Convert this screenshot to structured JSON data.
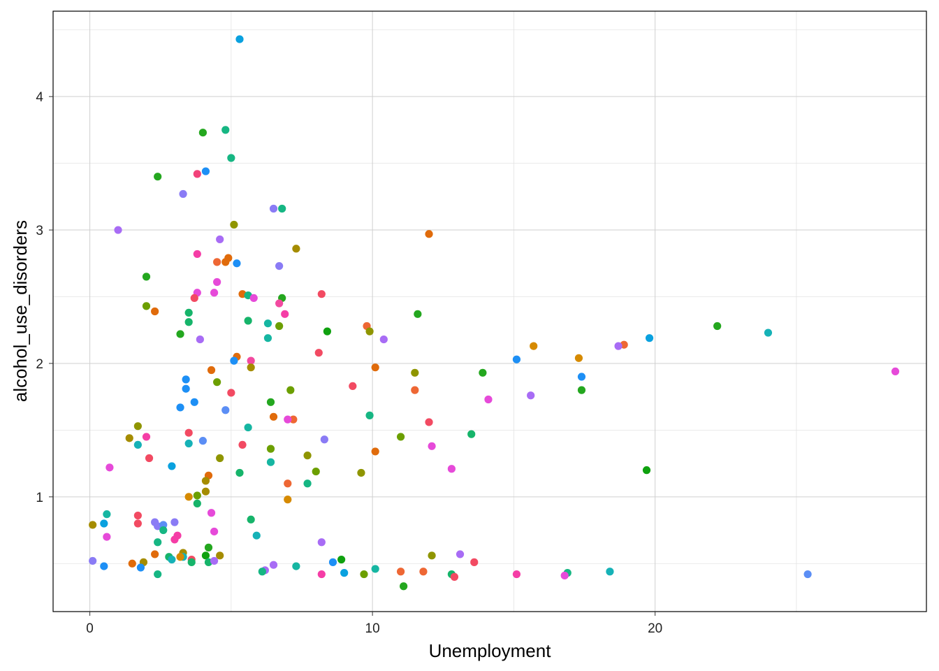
{
  "chart_data": {
    "type": "scatter",
    "title": "",
    "xlabel": "Unemployment",
    "ylabel": "alcohol_use_disorders",
    "xlim": [
      -1.3,
      29.6
    ],
    "ylim": [
      0.14,
      4.64
    ],
    "x_ticks": [
      0,
      10,
      20
    ],
    "x_tick_labels": [
      "0",
      "10",
      "20"
    ],
    "y_ticks": [
      1,
      2,
      3,
      4
    ],
    "y_tick_labels": [
      "1",
      "2",
      "3",
      "4"
    ],
    "grid": true,
    "legend": "none",
    "points": [
      {
        "x": 5.3,
        "y": 4.43,
        "color": "#0aa1df"
      },
      {
        "x": 4.0,
        "y": 3.73,
        "color": "#24a71f"
      },
      {
        "x": 4.8,
        "y": 3.75,
        "color": "#16b683"
      },
      {
        "x": 5.0,
        "y": 3.54,
        "color": "#16b683"
      },
      {
        "x": 4.1,
        "y": 3.44,
        "color": "#1d8ff5"
      },
      {
        "x": 3.8,
        "y": 3.42,
        "color": "#f2427a"
      },
      {
        "x": 2.4,
        "y": 3.4,
        "color": "#24a71f"
      },
      {
        "x": 3.3,
        "y": 3.27,
        "color": "#8a7bf5"
      },
      {
        "x": 6.5,
        "y": 3.16,
        "color": "#8a7bf5"
      },
      {
        "x": 6.8,
        "y": 3.16,
        "color": "#16b683"
      },
      {
        "x": 5.1,
        "y": 3.04,
        "color": "#8f9500"
      },
      {
        "x": 1.0,
        "y": 3.0,
        "color": "#a86cf5"
      },
      {
        "x": 12.0,
        "y": 2.97,
        "color": "#e06b0b"
      },
      {
        "x": 4.6,
        "y": 2.93,
        "color": "#a86cf5"
      },
      {
        "x": 7.3,
        "y": 2.86,
        "color": "#a58c00"
      },
      {
        "x": 3.8,
        "y": 2.82,
        "color": "#f53da6"
      },
      {
        "x": 4.9,
        "y": 2.79,
        "color": "#e06b0b"
      },
      {
        "x": 4.5,
        "y": 2.76,
        "color": "#ee6734"
      },
      {
        "x": 4.8,
        "y": 2.76,
        "color": "#e06b0b"
      },
      {
        "x": 5.2,
        "y": 2.75,
        "color": "#1d8ff5"
      },
      {
        "x": 6.7,
        "y": 2.73,
        "color": "#8a7bf5"
      },
      {
        "x": 2.0,
        "y": 2.65,
        "color": "#24a71f"
      },
      {
        "x": 4.5,
        "y": 2.61,
        "color": "#e64ad9"
      },
      {
        "x": 3.8,
        "y": 2.53,
        "color": "#e64ad9"
      },
      {
        "x": 4.4,
        "y": 2.53,
        "color": "#e64ad9"
      },
      {
        "x": 5.4,
        "y": 2.52,
        "color": "#e06b0b"
      },
      {
        "x": 8.2,
        "y": 2.52,
        "color": "#f24a62"
      },
      {
        "x": 5.6,
        "y": 2.51,
        "color": "#16b683"
      },
      {
        "x": 5.8,
        "y": 2.49,
        "color": "#e64ad9"
      },
      {
        "x": 3.7,
        "y": 2.49,
        "color": "#f24a62"
      },
      {
        "x": 6.8,
        "y": 2.49,
        "color": "#24a71f"
      },
      {
        "x": 6.7,
        "y": 2.45,
        "color": "#f24aa0"
      },
      {
        "x": 2.0,
        "y": 2.43,
        "color": "#6c9f00"
      },
      {
        "x": 2.3,
        "y": 2.39,
        "color": "#e06b0b"
      },
      {
        "x": 3.5,
        "y": 2.38,
        "color": "#16b46a"
      },
      {
        "x": 11.6,
        "y": 2.37,
        "color": "#24a71f"
      },
      {
        "x": 6.9,
        "y": 2.37,
        "color": "#f53da6"
      },
      {
        "x": 5.6,
        "y": 2.32,
        "color": "#16b46a"
      },
      {
        "x": 3.5,
        "y": 2.31,
        "color": "#16b46a"
      },
      {
        "x": 6.3,
        "y": 2.3,
        "color": "#16b6a2"
      },
      {
        "x": 6.7,
        "y": 2.28,
        "color": "#6c9f00"
      },
      {
        "x": 9.8,
        "y": 2.28,
        "color": "#ee6734"
      },
      {
        "x": 22.2,
        "y": 2.28,
        "color": "#24a71f"
      },
      {
        "x": 8.4,
        "y": 2.24,
        "color": "#0fa10f"
      },
      {
        "x": 9.9,
        "y": 2.24,
        "color": "#8f9500"
      },
      {
        "x": 24.0,
        "y": 2.23,
        "color": "#16b2b7"
      },
      {
        "x": 3.2,
        "y": 2.22,
        "color": "#24a71f"
      },
      {
        "x": 6.3,
        "y": 2.19,
        "color": "#16b6a2"
      },
      {
        "x": 19.8,
        "y": 2.19,
        "color": "#0aa1df"
      },
      {
        "x": 10.4,
        "y": 2.18,
        "color": "#a86cf5"
      },
      {
        "x": 3.9,
        "y": 2.18,
        "color": "#a86cf5"
      },
      {
        "x": 15.7,
        "y": 2.13,
        "color": "#d68a00"
      },
      {
        "x": 18.9,
        "y": 2.14,
        "color": "#ee6734"
      },
      {
        "x": 18.7,
        "y": 2.13,
        "color": "#a86cf5"
      },
      {
        "x": 8.1,
        "y": 2.08,
        "color": "#f24a62"
      },
      {
        "x": 5.2,
        "y": 2.05,
        "color": "#e06b0b"
      },
      {
        "x": 17.3,
        "y": 2.04,
        "color": "#d68a00"
      },
      {
        "x": 15.1,
        "y": 2.03,
        "color": "#1d8ff5"
      },
      {
        "x": 5.1,
        "y": 2.02,
        "color": "#1d8ff5"
      },
      {
        "x": 5.7,
        "y": 2.02,
        "color": "#f24aa0"
      },
      {
        "x": 10.1,
        "y": 1.97,
        "color": "#e06b0b"
      },
      {
        "x": 5.7,
        "y": 1.97,
        "color": "#a58c00"
      },
      {
        "x": 4.3,
        "y": 1.95,
        "color": "#e06b0b"
      },
      {
        "x": 11.5,
        "y": 1.93,
        "color": "#8f9500"
      },
      {
        "x": 13.9,
        "y": 1.93,
        "color": "#24a71f"
      },
      {
        "x": 17.4,
        "y": 1.9,
        "color": "#1d8ff5"
      },
      {
        "x": 28.5,
        "y": 1.94,
        "color": "#e64ad9"
      },
      {
        "x": 3.4,
        "y": 1.88,
        "color": "#1d8ff5"
      },
      {
        "x": 4.5,
        "y": 1.86,
        "color": "#6c9f00"
      },
      {
        "x": 9.3,
        "y": 1.83,
        "color": "#f24a62"
      },
      {
        "x": 3.4,
        "y": 1.81,
        "color": "#1d8ff5"
      },
      {
        "x": 7.1,
        "y": 1.8,
        "color": "#6c9f00"
      },
      {
        "x": 11.5,
        "y": 1.8,
        "color": "#ee6734"
      },
      {
        "x": 17.4,
        "y": 1.8,
        "color": "#24a71f"
      },
      {
        "x": 5.0,
        "y": 1.78,
        "color": "#f24a62"
      },
      {
        "x": 15.6,
        "y": 1.76,
        "color": "#a86cf5"
      },
      {
        "x": 14.1,
        "y": 1.73,
        "color": "#e64ad9"
      },
      {
        "x": 3.7,
        "y": 1.71,
        "color": "#1d8ff5"
      },
      {
        "x": 6.4,
        "y": 1.71,
        "color": "#24a71f"
      },
      {
        "x": 3.2,
        "y": 1.67,
        "color": "#1d8ff5"
      },
      {
        "x": 4.8,
        "y": 1.65,
        "color": "#5b8ef5"
      },
      {
        "x": 6.5,
        "y": 1.6,
        "color": "#e06b0b"
      },
      {
        "x": 9.9,
        "y": 1.61,
        "color": "#16b683"
      },
      {
        "x": 7.2,
        "y": 1.58,
        "color": "#ee6734"
      },
      {
        "x": 7.0,
        "y": 1.58,
        "color": "#e64ad9"
      },
      {
        "x": 12.0,
        "y": 1.56,
        "color": "#f24a62"
      },
      {
        "x": 1.7,
        "y": 1.53,
        "color": "#8f9500"
      },
      {
        "x": 5.6,
        "y": 1.52,
        "color": "#16b6a2"
      },
      {
        "x": 3.5,
        "y": 1.48,
        "color": "#f24a62"
      },
      {
        "x": 13.5,
        "y": 1.47,
        "color": "#16b46a"
      },
      {
        "x": 2.0,
        "y": 1.45,
        "color": "#f53da6"
      },
      {
        "x": 11.0,
        "y": 1.45,
        "color": "#6c9f00"
      },
      {
        "x": 1.4,
        "y": 1.44,
        "color": "#a58c00"
      },
      {
        "x": 8.3,
        "y": 1.43,
        "color": "#8a7bf5"
      },
      {
        "x": 4.0,
        "y": 1.42,
        "color": "#5b8ef5"
      },
      {
        "x": 3.5,
        "y": 1.4,
        "color": "#16b2b7"
      },
      {
        "x": 1.7,
        "y": 1.39,
        "color": "#16b2b7"
      },
      {
        "x": 5.4,
        "y": 1.39,
        "color": "#f24a62"
      },
      {
        "x": 12.1,
        "y": 1.38,
        "color": "#e64ad9"
      },
      {
        "x": 6.4,
        "y": 1.36,
        "color": "#6c9f00"
      },
      {
        "x": 10.1,
        "y": 1.34,
        "color": "#e06b0b"
      },
      {
        "x": 7.7,
        "y": 1.31,
        "color": "#8f9500"
      },
      {
        "x": 2.1,
        "y": 1.29,
        "color": "#f24a62"
      },
      {
        "x": 4.6,
        "y": 1.29,
        "color": "#8f9500"
      },
      {
        "x": 6.4,
        "y": 1.26,
        "color": "#16b6a2"
      },
      {
        "x": 2.9,
        "y": 1.23,
        "color": "#0aa1df"
      },
      {
        "x": 0.7,
        "y": 1.22,
        "color": "#e64ad9"
      },
      {
        "x": 12.8,
        "y": 1.21,
        "color": "#e64ad9"
      },
      {
        "x": 19.7,
        "y": 1.2,
        "color": "#0fa10f"
      },
      {
        "x": 8.0,
        "y": 1.19,
        "color": "#6c9f00"
      },
      {
        "x": 9.6,
        "y": 1.18,
        "color": "#8f9500"
      },
      {
        "x": 5.3,
        "y": 1.18,
        "color": "#16b46a"
      },
      {
        "x": 4.2,
        "y": 1.16,
        "color": "#e06b0b"
      },
      {
        "x": 4.1,
        "y": 1.12,
        "color": "#a58c00"
      },
      {
        "x": 7.0,
        "y": 1.1,
        "color": "#ee6734"
      },
      {
        "x": 7.7,
        "y": 1.1,
        "color": "#16b683"
      },
      {
        "x": 4.1,
        "y": 1.04,
        "color": "#a58c00"
      },
      {
        "x": 3.8,
        "y": 1.01,
        "color": "#6c9f00"
      },
      {
        "x": 3.5,
        "y": 1.0,
        "color": "#d68a00"
      },
      {
        "x": 7.0,
        "y": 0.98,
        "color": "#d68a00"
      },
      {
        "x": 3.8,
        "y": 0.95,
        "color": "#16b46a"
      },
      {
        "x": 0.6,
        "y": 0.87,
        "color": "#16b6a2"
      },
      {
        "x": 4.3,
        "y": 0.88,
        "color": "#e64ad9"
      },
      {
        "x": 1.7,
        "y": 0.86,
        "color": "#f24a62"
      },
      {
        "x": 5.7,
        "y": 0.83,
        "color": "#16b46a"
      },
      {
        "x": 2.3,
        "y": 0.81,
        "color": "#8a7bf5"
      },
      {
        "x": 3.0,
        "y": 0.81,
        "color": "#8a7bf5"
      },
      {
        "x": 0.5,
        "y": 0.8,
        "color": "#0aa1df"
      },
      {
        "x": 1.7,
        "y": 0.8,
        "color": "#f24a62"
      },
      {
        "x": 0.1,
        "y": 0.79,
        "color": "#a58c00"
      },
      {
        "x": 2.4,
        "y": 0.78,
        "color": "#8a7bf5"
      },
      {
        "x": 2.6,
        "y": 0.79,
        "color": "#5b8ef5"
      },
      {
        "x": 2.6,
        "y": 0.75,
        "color": "#16b683"
      },
      {
        "x": 4.4,
        "y": 0.74,
        "color": "#e64ad9"
      },
      {
        "x": 5.9,
        "y": 0.71,
        "color": "#16b2b7"
      },
      {
        "x": 3.1,
        "y": 0.71,
        "color": "#f53da6"
      },
      {
        "x": 0.6,
        "y": 0.7,
        "color": "#e64ad9"
      },
      {
        "x": 3.0,
        "y": 0.68,
        "color": "#f53da6"
      },
      {
        "x": 8.2,
        "y": 0.66,
        "color": "#a86cf5"
      },
      {
        "x": 2.4,
        "y": 0.66,
        "color": "#16b683"
      },
      {
        "x": 4.2,
        "y": 0.62,
        "color": "#24a71f"
      },
      {
        "x": 3.3,
        "y": 0.58,
        "color": "#a58c00"
      },
      {
        "x": 13.1,
        "y": 0.57,
        "color": "#a86cf5"
      },
      {
        "x": 12.1,
        "y": 0.56,
        "color": "#8f9500"
      },
      {
        "x": 2.3,
        "y": 0.57,
        "color": "#e06b0b"
      },
      {
        "x": 4.6,
        "y": 0.56,
        "color": "#a58c00"
      },
      {
        "x": 4.1,
        "y": 0.56,
        "color": "#0fa10f"
      },
      {
        "x": 2.8,
        "y": 0.55,
        "color": "#16b46a"
      },
      {
        "x": 3.3,
        "y": 0.55,
        "color": "#16b2b7"
      },
      {
        "x": 3.2,
        "y": 0.55,
        "color": "#d68a00"
      },
      {
        "x": 2.9,
        "y": 0.53,
        "color": "#16b2b7"
      },
      {
        "x": 3.6,
        "y": 0.53,
        "color": "#f24a62"
      },
      {
        "x": 0.1,
        "y": 0.52,
        "color": "#8a7bf5"
      },
      {
        "x": 1.9,
        "y": 0.51,
        "color": "#a58c00"
      },
      {
        "x": 1.5,
        "y": 0.5,
        "color": "#e06b0b"
      },
      {
        "x": 4.2,
        "y": 0.51,
        "color": "#16b46a"
      },
      {
        "x": 4.4,
        "y": 0.52,
        "color": "#a86cf5"
      },
      {
        "x": 3.6,
        "y": 0.51,
        "color": "#16b46a"
      },
      {
        "x": 8.9,
        "y": 0.53,
        "color": "#0fa10f"
      },
      {
        "x": 8.6,
        "y": 0.51,
        "color": "#1d8ff5"
      },
      {
        "x": 13.6,
        "y": 0.51,
        "color": "#f24a62"
      },
      {
        "x": 0.5,
        "y": 0.48,
        "color": "#1d8ff5"
      },
      {
        "x": 1.8,
        "y": 0.47,
        "color": "#1d8ff5"
      },
      {
        "x": 6.5,
        "y": 0.49,
        "color": "#a86cf5"
      },
      {
        "x": 7.3,
        "y": 0.48,
        "color": "#16b6a2"
      },
      {
        "x": 10.1,
        "y": 0.46,
        "color": "#16b6a2"
      },
      {
        "x": 6.2,
        "y": 0.45,
        "color": "#a86cf5"
      },
      {
        "x": 6.1,
        "y": 0.44,
        "color": "#16b683"
      },
      {
        "x": 11.0,
        "y": 0.44,
        "color": "#ee6734"
      },
      {
        "x": 11.8,
        "y": 0.44,
        "color": "#ee6734"
      },
      {
        "x": 9.0,
        "y": 0.43,
        "color": "#0aa1df"
      },
      {
        "x": 8.2,
        "y": 0.42,
        "color": "#f53da6"
      },
      {
        "x": 12.8,
        "y": 0.42,
        "color": "#16b46a"
      },
      {
        "x": 15.1,
        "y": 0.42,
        "color": "#f53da6"
      },
      {
        "x": 16.9,
        "y": 0.43,
        "color": "#16b683"
      },
      {
        "x": 18.4,
        "y": 0.44,
        "color": "#16b2b7"
      },
      {
        "x": 25.4,
        "y": 0.42,
        "color": "#5b8ef5"
      },
      {
        "x": 2.4,
        "y": 0.42,
        "color": "#16b683"
      },
      {
        "x": 9.7,
        "y": 0.42,
        "color": "#6c9f00"
      },
      {
        "x": 12.9,
        "y": 0.4,
        "color": "#f24a62"
      },
      {
        "x": 16.8,
        "y": 0.41,
        "color": "#e64ad9"
      },
      {
        "x": 11.1,
        "y": 0.33,
        "color": "#24a71f"
      }
    ]
  }
}
